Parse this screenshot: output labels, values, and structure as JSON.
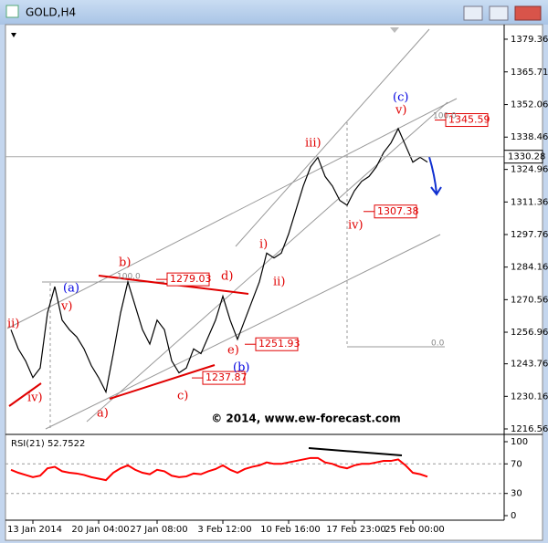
{
  "window_title": "GOLD,H4",
  "chart_data": [
    {
      "type": "line",
      "color": "#000000",
      "categories": [
        null,
        null,
        null,
        "13 Jan 2014",
        null,
        null,
        null,
        null,
        null,
        null,
        null,
        null,
        "20 Jan 04:00",
        null,
        null,
        null,
        null,
        null,
        null,
        null,
        "27 Jan 08:00",
        null,
        null,
        null,
        null,
        null,
        null,
        null,
        null,
        "3 Feb 12:00",
        null,
        null,
        null,
        null,
        null,
        null,
        null,
        null,
        "10 Feb 16:00",
        null,
        null,
        null,
        null,
        null,
        null,
        null,
        null,
        "17 Feb 23:00",
        null,
        null,
        null,
        null,
        null,
        null,
        null,
        "25 Feb 00:00",
        null,
        null
      ],
      "values": [
        1258,
        1250,
        1245,
        1238,
        1242,
        1265,
        1276,
        1262,
        1258,
        1255,
        1250,
        1243,
        1238,
        1232,
        1248,
        1265,
        1278,
        1268,
        1258,
        1252,
        1262,
        1258,
        1245,
        1240,
        1242,
        1250,
        1248,
        1255,
        1262,
        1272,
        1262,
        1254,
        1262,
        1270,
        1278,
        1290,
        1288,
        1290,
        1298,
        1308,
        1318,
        1326,
        1330,
        1322,
        1318,
        1312,
        1310,
        1316,
        1320,
        1322,
        1326,
        1332,
        1336,
        1342,
        1335,
        1328,
        1330,
        1328
      ],
      "ylim": [
        1214.65,
        1384.3
      ],
      "yticks": [
        1379.36,
        1365.71,
        1352.06,
        1338.46,
        1324.96,
        1311.36,
        1297.76,
        1284.16,
        1270.56,
        1256.96,
        1243.76,
        1230.16,
        1216.56
      ],
      "current_price": 1330.28,
      "levels": [
        1345.59,
        1279.03,
        1307.38,
        1251.93,
        1237.87
      ],
      "fib_labels": [
        "100.0",
        "100.0",
        "0.0"
      ],
      "annotations": [
        {
          "text": "ii)",
          "color": "#e00000"
        },
        {
          "text": "iv)",
          "color": "#e00000"
        },
        {
          "text": "(a)",
          "color": "#0000e0"
        },
        {
          "text": "v)",
          "color": "#e00000"
        },
        {
          "text": "b)",
          "color": "#e00000"
        },
        {
          "text": "a)",
          "color": "#e00000"
        },
        {
          "text": "c)",
          "color": "#e00000"
        },
        {
          "text": "d)",
          "color": "#e00000"
        },
        {
          "text": "e)",
          "color": "#e00000"
        },
        {
          "text": "(b)",
          "color": "#0000e0"
        },
        {
          "text": "i)",
          "color": "#e00000"
        },
        {
          "text": "ii)",
          "color": "#e00000"
        },
        {
          "text": "iii)",
          "color": "#e00000"
        },
        {
          "text": "iv)",
          "color": "#e00000"
        },
        {
          "text": "(c)",
          "color": "#0000e0"
        },
        {
          "text": "v)",
          "color": "#e00000"
        }
      ],
      "watermark": "© 2014, www.ew-forecast.com"
    },
    {
      "type": "line",
      "title": "RSI(21) 52.7522",
      "color": "#ff0000",
      "values": [
        62,
        58,
        55,
        52,
        54,
        64,
        66,
        60,
        58,
        57,
        55,
        52,
        50,
        48,
        58,
        64,
        68,
        62,
        58,
        56,
        62,
        60,
        54,
        52,
        53,
        57,
        56,
        60,
        63,
        68,
        62,
        58,
        63,
        66,
        68,
        72,
        70,
        70,
        72,
        74,
        76,
        78,
        78,
        72,
        70,
        66,
        64,
        68,
        70,
        70,
        72,
        74,
        74,
        76,
        68,
        58,
        56,
        52.7522
      ],
      "ylim": [
        -3.7,
        107.4
      ],
      "yticks": [
        100,
        70,
        30,
        0
      ],
      "levels": [
        70,
        30
      ]
    }
  ]
}
